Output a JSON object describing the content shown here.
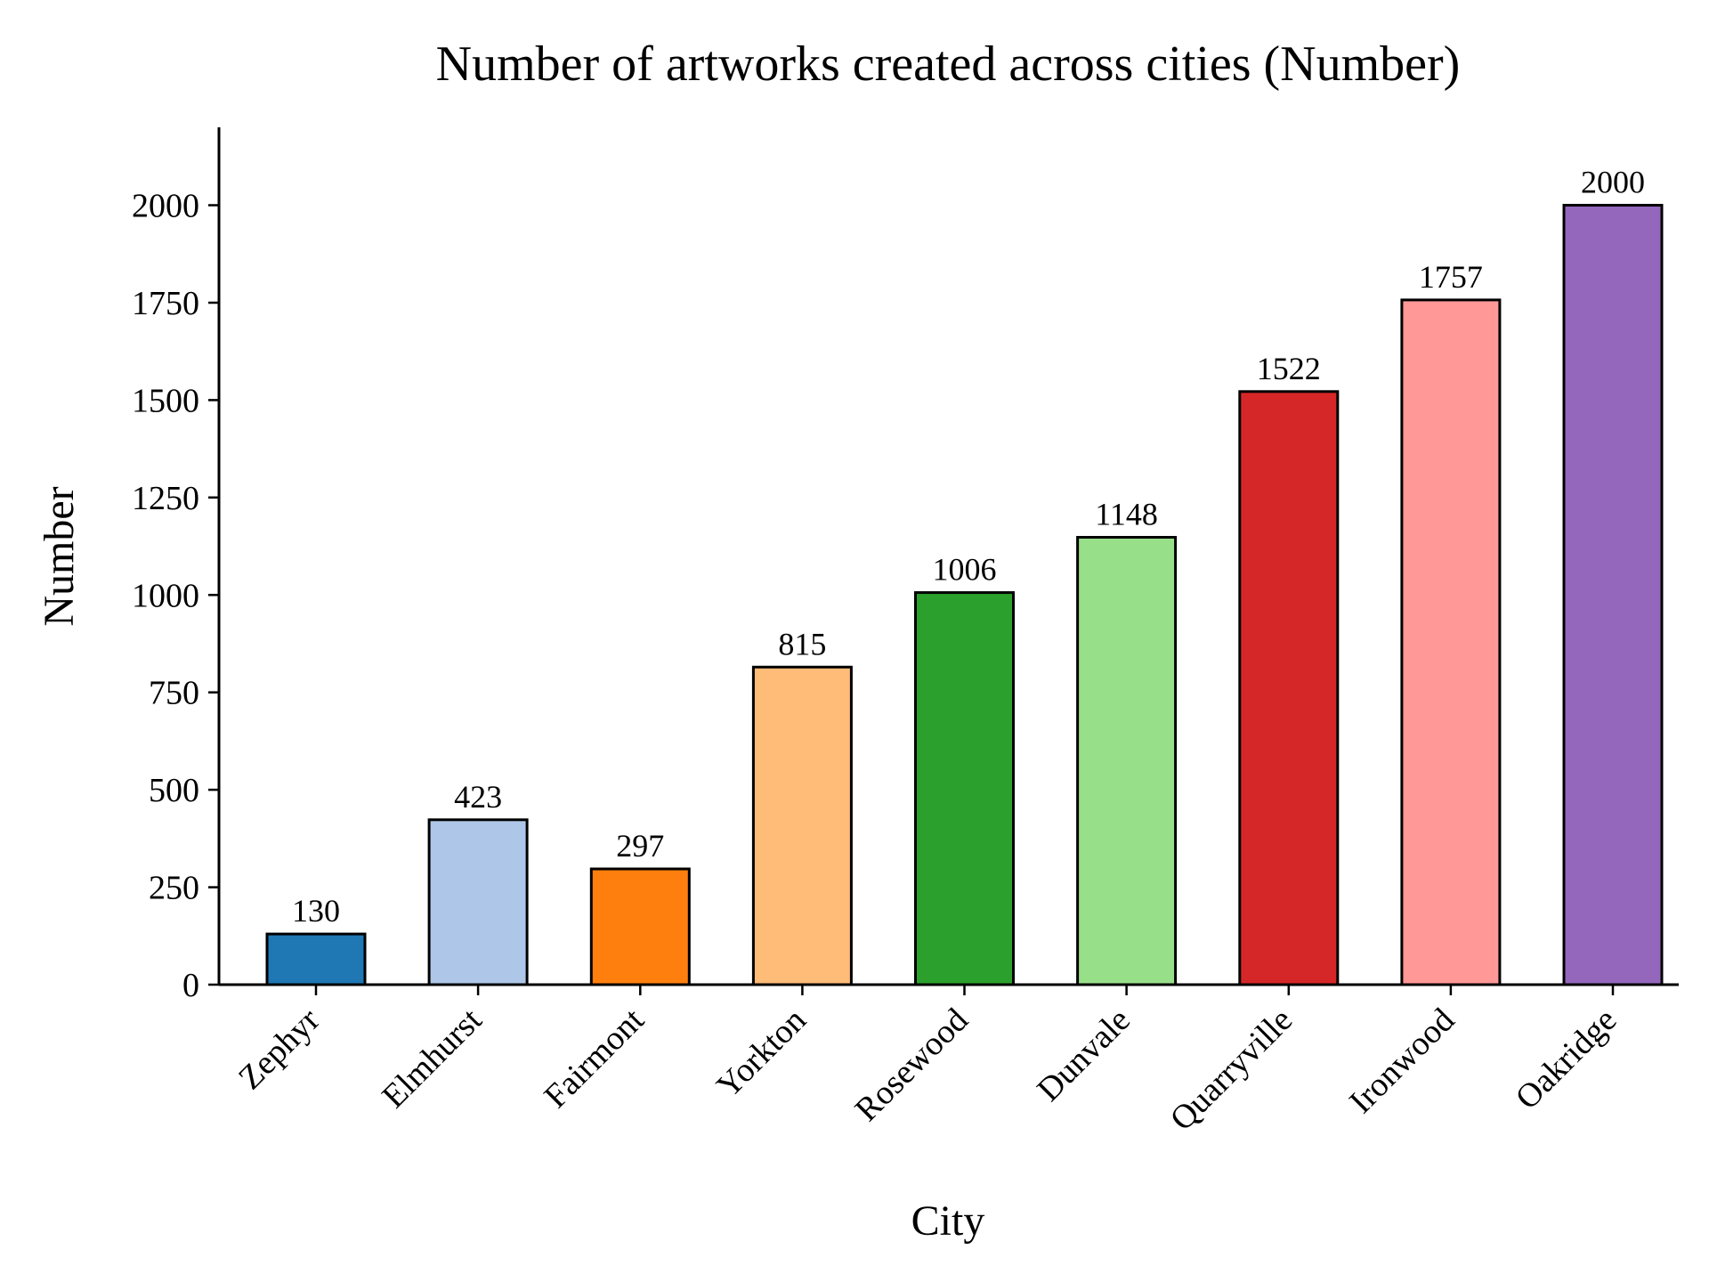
{
  "chart_data": {
    "type": "bar",
    "title": "Number of artworks created across cities (Number)",
    "xlabel": "City",
    "ylabel": "Number",
    "categories": [
      "Zephyr",
      "Elmhurst",
      "Fairmont",
      "Yorkton",
      "Rosewood",
      "Dunvale",
      "Quarryville",
      "Ironwood",
      "Oakridge"
    ],
    "values": [
      130,
      423,
      297,
      815,
      1006,
      1148,
      1522,
      1757,
      2000
    ],
    "colors": [
      "#1f77b4",
      "#aec7e8",
      "#ff7f0e",
      "#ffbb78",
      "#2ca02c",
      "#98df8a",
      "#d62728",
      "#ff9896",
      "#9467bd"
    ],
    "yticks": [
      0,
      250,
      500,
      750,
      1000,
      1250,
      1500,
      1750,
      2000
    ],
    "ylim": [
      0,
      2200
    ],
    "grid": false,
    "legend": "none",
    "bar_edge_color": "#000000"
  }
}
